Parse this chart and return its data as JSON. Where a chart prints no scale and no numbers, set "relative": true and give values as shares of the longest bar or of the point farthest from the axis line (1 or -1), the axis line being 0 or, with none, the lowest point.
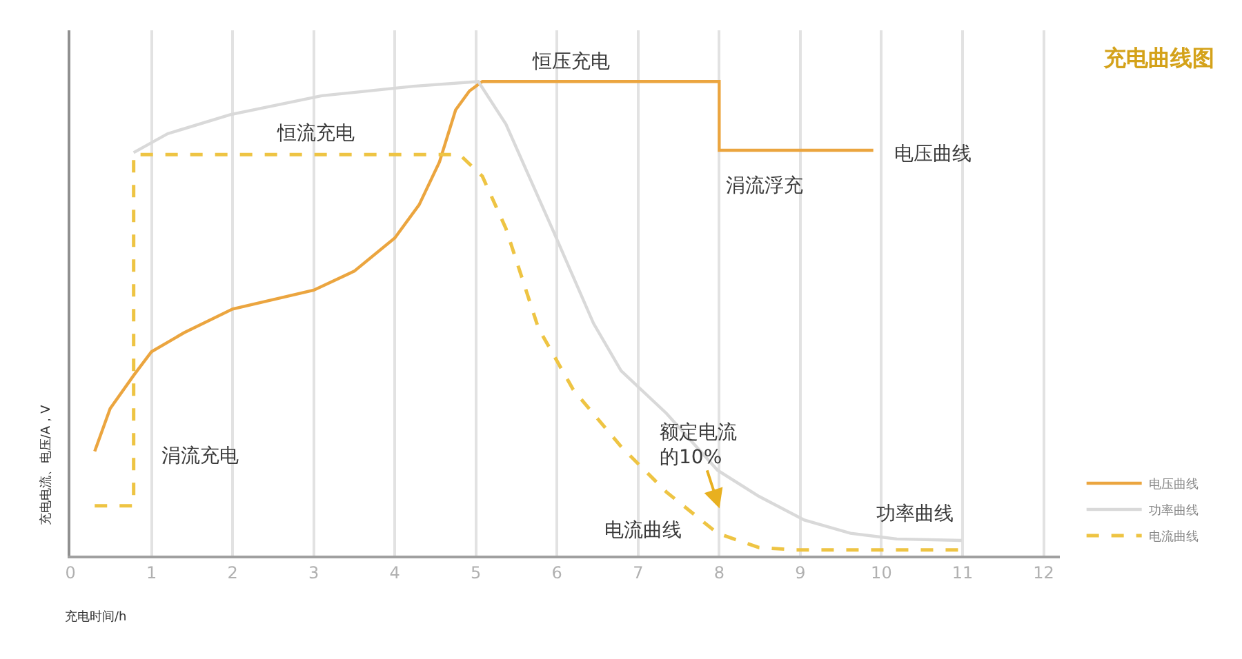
{
  "chart_data": {
    "type": "line",
    "title": "充电曲线图",
    "xlabel": "充电时间/h",
    "ylabel": "充电电流、电压/A，V",
    "relative": true,
    "xlim": [
      0,
      12.2
    ],
    "xticks": [
      0,
      1,
      2,
      3,
      4,
      5,
      6,
      7,
      8,
      9,
      10,
      11,
      12
    ],
    "grid": "x",
    "legend": "bottom right",
    "series": [
      {
        "name": "电压曲线",
        "color": "#eba53f",
        "line_style": "solid",
        "x": [
          0.3,
          0.49,
          0.78,
          1.0,
          1.4,
          2.0,
          2.5,
          3.0,
          3.5,
          4.0,
          4.3,
          4.55,
          4.75,
          4.92,
          5.08,
          5.2,
          8.0,
          8.0,
          9.9
        ],
        "values": [
          0.22,
          0.31,
          0.38,
          0.43,
          0.47,
          0.52,
          0.54,
          0.56,
          0.6,
          0.67,
          0.74,
          0.83,
          0.94,
          0.98,
          1.0,
          1.0,
          1.0,
          0.855,
          0.855
        ]
      },
      {
        "name": "功率曲线",
        "color": "#d9d9d9",
        "line_style": "solid",
        "x": [
          0.78,
          1.2,
          1.97,
          3.1,
          4.23,
          5.03,
          5.37,
          5.94,
          6.45,
          6.79,
          7.35,
          7.98,
          8.49,
          9.05,
          9.62,
          10.19,
          10.99
        ],
        "values": [
          0.85,
          0.89,
          0.93,
          0.97,
          0.99,
          1.0,
          0.91,
          0.69,
          0.49,
          0.39,
          0.3,
          0.18,
          0.125,
          0.075,
          0.047,
          0.035,
          0.032
        ]
      },
      {
        "name": "电流曲线",
        "color": "#eec443",
        "line_style": "dashed",
        "x": [
          0.3,
          0.78,
          0.78,
          4.8,
          5.08,
          5.37,
          5.77,
          6.2,
          6.79,
          7.35,
          7.98,
          8.49,
          8.95,
          10.99
        ],
        "values": [
          0.105,
          0.105,
          0.846,
          0.846,
          0.8,
          0.69,
          0.48,
          0.35,
          0.23,
          0.134,
          0.047,
          0.017,
          0.012,
          0.012
        ]
      }
    ],
    "annotations": [
      "恒压充电",
      "恒流充电",
      "涓流充电",
      "涓流浮充",
      "电压曲线",
      "额定电流的10%",
      "电流曲线",
      "功率曲线"
    ]
  }
}
